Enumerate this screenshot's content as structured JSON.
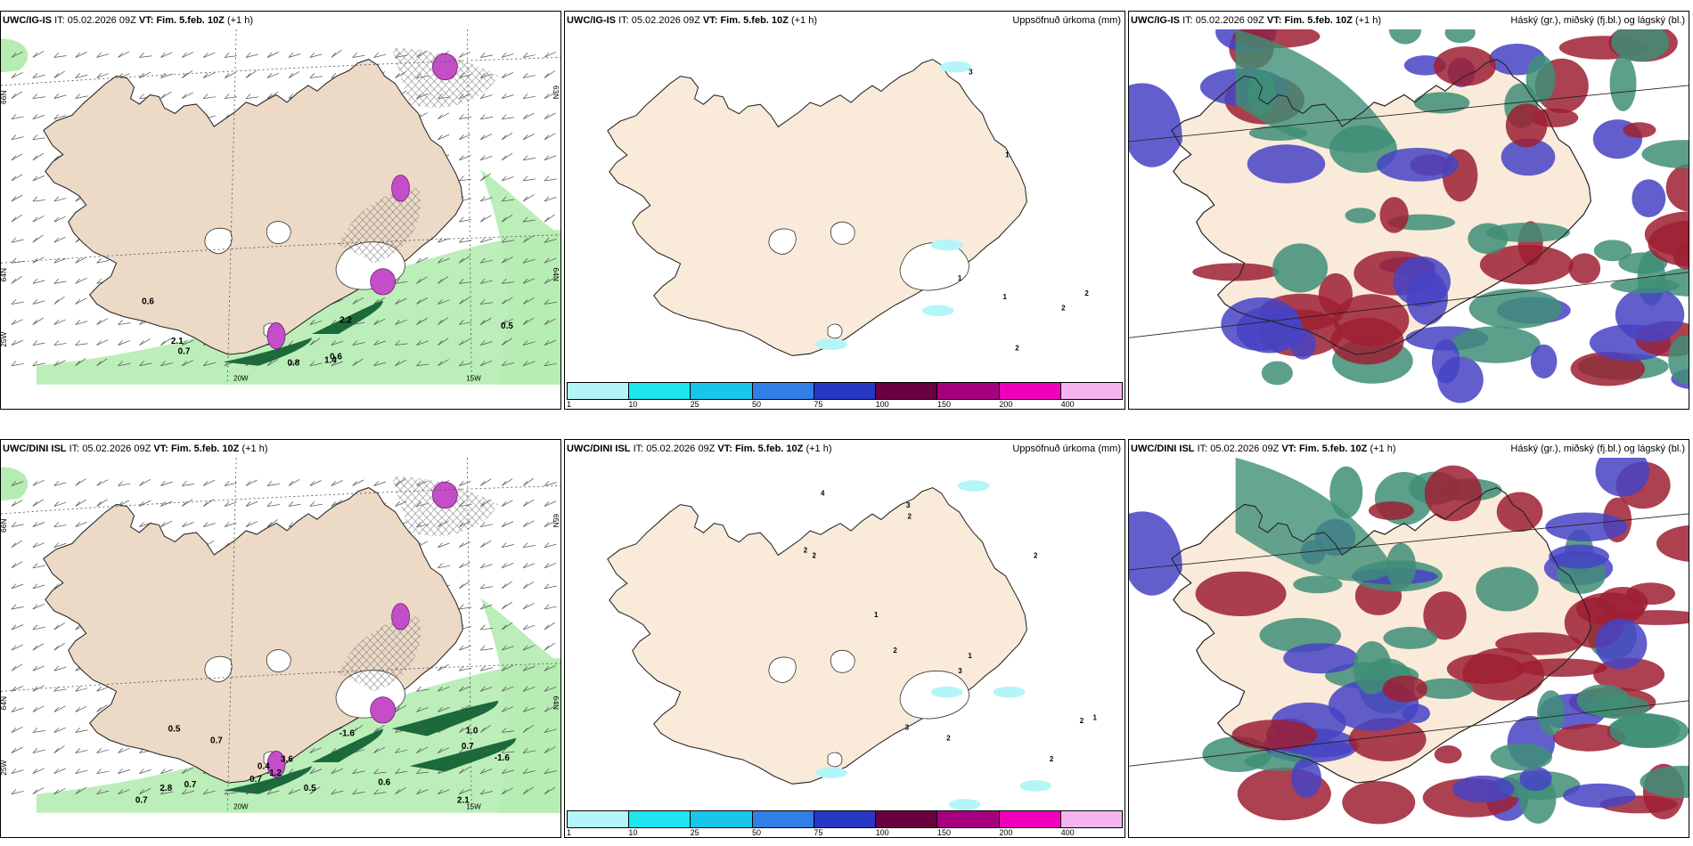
{
  "panels": [
    {
      "model": "UWC/IG-IS",
      "it_label": "IT:",
      "it_value": "05.02.2026 09Z",
      "vt_label": "VT:",
      "vt_value": "Fim. 5.feb. 10Z",
      "lead": "(+1 h)",
      "right_title": "",
      "type": "symbols",
      "coords": [
        "66N",
        "64N",
        "25W",
        "20W",
        "15W",
        "63N",
        "64N"
      ],
      "values": [
        "0.8",
        "0.6",
        "2.2",
        "0.6",
        "0.5",
        "0.7",
        "1.4",
        "2.1"
      ]
    },
    {
      "model": "UWC/IG-IS",
      "it_label": "IT:",
      "it_value": "05.02.2026 09Z",
      "vt_label": "VT:",
      "vt_value": "Fim. 5.feb. 10Z",
      "lead": "(+1 h)",
      "right_title": "Uppsöfnuð úrkoma (mm)",
      "type": "precip",
      "values": [
        "2",
        "2",
        "1",
        "3",
        "1",
        "1",
        "2"
      ]
    },
    {
      "model": "UWC/IG-IS",
      "it_label": "IT:",
      "it_value": "05.02.2026 09Z",
      "vt_label": "VT:",
      "vt_value": "Fim. 5.feb. 10Z",
      "lead": "(+1 h)",
      "right_title": "Háský (gr.), miðský (fj.bl.) og lágský (bl.)",
      "type": "clouds"
    },
    {
      "model": "UWC/DINI ISL",
      "it_label": "IT:",
      "it_value": "05.02.2026 09Z",
      "vt_label": "VT:",
      "vt_value": "Fim. 5.feb. 10Z",
      "lead": "(+1 h)",
      "right_title": "",
      "type": "symbols",
      "coords": [
        "66N",
        "64N",
        "25W",
        "20W",
        "15W",
        "65N",
        "64N"
      ],
      "values": [
        "-1.6",
        "-1.6",
        "0.5",
        "0.6",
        "0.7",
        "0.7",
        "1.0",
        "3.6",
        "2.8",
        "0.7",
        "0.7",
        "1.2",
        "0.4",
        "2.1",
        "0.5",
        "0.7"
      ]
    },
    {
      "model": "UWC/DINI ISL",
      "it_label": "IT:",
      "it_value": "05.02.2026 09Z",
      "vt_label": "VT:",
      "vt_value": "Fim. 5.feb. 10Z",
      "lead": "(+1 h)",
      "right_title": "Uppsöfnuð úrkoma (mm)",
      "type": "precip",
      "values": [
        "1",
        "2",
        "3",
        "2",
        "2",
        "1",
        "2",
        "2",
        "3",
        "2",
        "1",
        "4",
        "2",
        "3",
        "2"
      ]
    },
    {
      "model": "UWC/DINI ISL",
      "it_label": "IT:",
      "it_value": "05.02.2026 09Z",
      "vt_label": "VT:",
      "vt_value": "Fim. 5.feb. 10Z",
      "lead": "(+1 h)",
      "right_title": "Háský (gr.), miðský (fj.bl.) og lágský (bl.)",
      "type": "clouds"
    }
  ],
  "colorbar": {
    "labels": [
      "1",
      "10",
      "25",
      "50",
      "75",
      "100",
      "150",
      "200",
      "400"
    ],
    "colors": [
      "#b4f6f8",
      "#1ee6ef",
      "#18c6ea",
      "#2f7fe6",
      "#2539c5",
      "#6a0040",
      "#a5007f",
      "#f000bd",
      "#f6b4ef"
    ]
  },
  "colors": {
    "land": "#f9ead9",
    "land_sym": "#ecd9c6",
    "glacier": "#ffffff",
    "green_light": "#b5ecb1",
    "green_dark": "#1a6a3b",
    "magenta": "#c34ec8",
    "cloud_high": "#3f8e77",
    "cloud_mid": "#9d2033",
    "cloud_low": "#4643c4"
  }
}
